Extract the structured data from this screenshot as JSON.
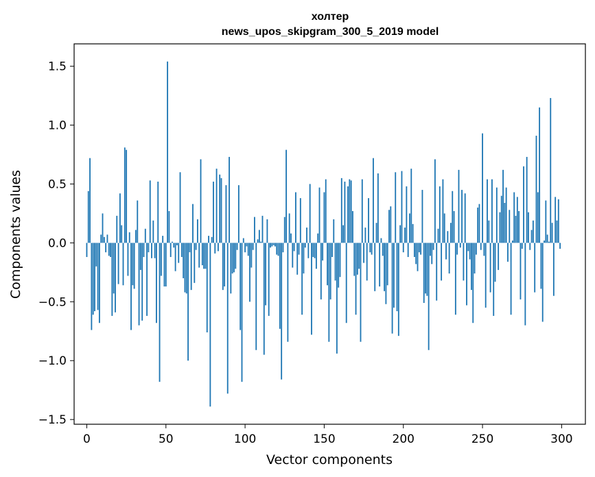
{
  "chart_data": {
    "type": "bar",
    "title_line1": "холтер",
    "title_line2": "news_upos_skipgram_300_5_2019 model",
    "xlabel": "Vector components",
    "ylabel": "Components values",
    "xlim": [
      -8,
      315
    ],
    "ylim": [
      -1.54,
      1.69
    ],
    "xticks": [
      0,
      50,
      100,
      150,
      200,
      250,
      300
    ],
    "yticks": [
      -1.5,
      -1.0,
      -0.5,
      0.0,
      0.5,
      1.0,
      1.5
    ],
    "ytick_labels": [
      "−1.5",
      "−1.0",
      "−0.5",
      "0.0",
      "0.5",
      "1.0",
      "1.5"
    ],
    "bar_color": "#1f77b4",
    "grid": false,
    "values": [
      -0.12,
      0.44,
      0.72,
      -0.74,
      -0.61,
      -0.58,
      -0.2,
      -0.57,
      -0.68,
      0.07,
      0.25,
      0.05,
      -0.08,
      0.07,
      -0.11,
      -0.12,
      -0.62,
      -0.43,
      -0.59,
      0.23,
      -0.35,
      0.42,
      0.15,
      -0.36,
      0.81,
      0.79,
      -0.28,
      0.09,
      -0.74,
      -0.36,
      -0.39,
      0.11,
      0.36,
      -0.7,
      -0.23,
      -0.66,
      -0.12,
      0.12,
      -0.62,
      -0.08,
      0.53,
      -0.13,
      0.19,
      -0.13,
      -0.68,
      0.52,
      -1.18,
      -0.28,
      0.06,
      -0.37,
      -0.37,
      1.54,
      0.27,
      -0.12,
      0.01,
      -0.04,
      -0.24,
      -0.02,
      -0.17,
      0.6,
      -0.12,
      -0.3,
      -0.42,
      -0.43,
      -1.0,
      -0.08,
      -0.4,
      0.33,
      -0.34,
      -0.06,
      0.2,
      -0.21,
      0.71,
      -0.19,
      -0.22,
      -0.22,
      -0.76,
      0.06,
      -1.39,
      0.05,
      0.52,
      -0.09,
      0.63,
      -0.07,
      0.58,
      0.55,
      -0.4,
      -0.37,
      0.49,
      -1.28,
      0.73,
      -0.43,
      -0.26,
      -0.25,
      -0.22,
      -0.06,
      0.49,
      -0.74,
      -1.18,
      0.04,
      -0.08,
      -0.03,
      -0.11,
      -0.5,
      -0.21,
      -0.06,
      0.22,
      -0.91,
      0.03,
      0.11,
      0.01,
      0.23,
      -0.95,
      -0.53,
      0.2,
      -0.62,
      -0.04,
      -0.03,
      -0.02,
      -0.03,
      -0.1,
      -0.11,
      -0.73,
      -1.16,
      -0.08,
      0.22,
      0.79,
      -0.84,
      0.25,
      0.08,
      -0.21,
      -0.07,
      0.43,
      -0.27,
      -0.1,
      0.38,
      -0.61,
      -0.26,
      -0.04,
      0.13,
      -0.13,
      0.5,
      -0.78,
      -0.12,
      -0.13,
      -0.22,
      0.08,
      0.47,
      -0.48,
      -0.15,
      0.43,
      0.54,
      -0.36,
      -0.84,
      -0.48,
      -0.12,
      0.2,
      -0.32,
      -0.94,
      -0.38,
      -0.29,
      0.55,
      0.15,
      0.52,
      -0.68,
      0.48,
      0.54,
      0.53,
      0.27,
      -0.28,
      -0.61,
      -0.27,
      -0.22,
      -0.84,
      0.54,
      -0.17,
      0.13,
      -0.32,
      0.38,
      -0.08,
      -0.1,
      0.72,
      -0.41,
      0.17,
      0.59,
      -0.37,
      0.04,
      -0.11,
      -0.41,
      -0.52,
      -0.36,
      0.28,
      0.31,
      -0.77,
      -0.55,
      0.6,
      -0.58,
      -0.79,
      0.15,
      0.61,
      -0.08,
      0.13,
      0.48,
      -0.12,
      0.25,
      0.63,
      0.16,
      -0.12,
      -0.18,
      -0.24,
      -0.08,
      -0.1,
      0.45,
      -0.51,
      -0.43,
      -0.45,
      -0.91,
      -0.11,
      -0.18,
      -0.06,
      0.71,
      -0.49,
      0.12,
      0.48,
      -0.32,
      0.54,
      0.25,
      -0.14,
      0.1,
      -0.26,
      0.17,
      0.44,
      0.27,
      -0.61,
      -0.1,
      0.62,
      -0.04,
      0.45,
      -0.32,
      0.42,
      -0.53,
      -0.07,
      -0.14,
      -0.4,
      -0.68,
      -0.26,
      -0.1,
      0.3,
      0.33,
      -0.06,
      0.93,
      -0.11,
      -0.55,
      0.54,
      0.19,
      -0.42,
      0.54,
      -0.62,
      -0.33,
      0.47,
      -0.23,
      0.26,
      0.4,
      0.62,
      0.34,
      0.47,
      -0.16,
      0.28,
      -0.61,
      0.02,
      0.43,
      0.23,
      0.39,
      0.27,
      -0.48,
      -0.05,
      0.65,
      -0.7,
      0.73,
      0.26,
      -0.06,
      0.11,
      0.19,
      -0.42,
      0.91,
      0.43,
      1.15,
      -0.39,
      -0.67,
      0.02,
      0.36,
      0.07,
      0.01,
      1.23,
      0.17,
      -0.45,
      0.39,
      0.19,
      0.37,
      -0.05
    ]
  }
}
